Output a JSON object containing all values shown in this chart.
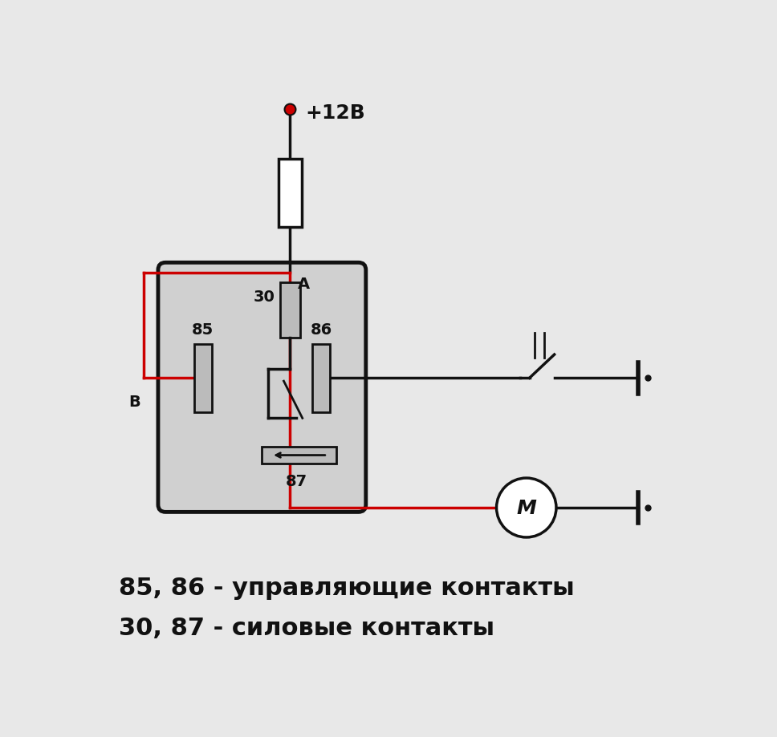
{
  "bg_color": "#e8e8e8",
  "relay_fill": "#d0d0d0",
  "relay_border": "#111111",
  "label_85_86": "85, 86 - управляющие контакты",
  "label_30_87": "30, 87 - силовые контакты",
  "plus12v_label": "+12В",
  "point_A_label": "A",
  "point_B_label": "B",
  "pin_30": "30",
  "pin_85": "85",
  "pin_86": "86",
  "pin_87": "87",
  "red_color": "#cc0000",
  "black_color": "#111111",
  "white": "#ffffff",
  "pin_fill": "#bbbbbb"
}
